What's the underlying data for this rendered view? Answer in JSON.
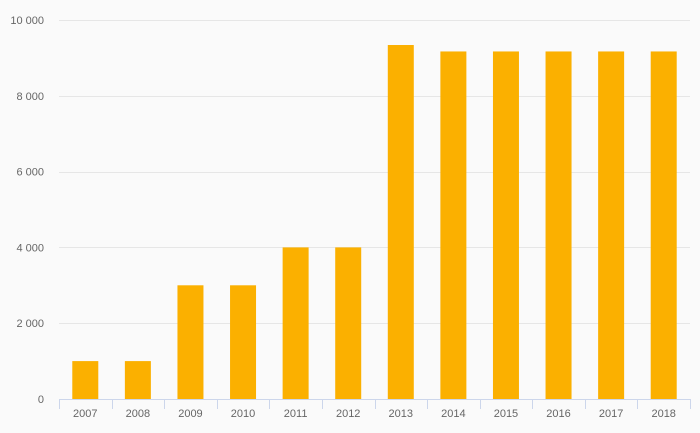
{
  "chart_data": {
    "type": "bar",
    "categories": [
      "2007",
      "2008",
      "2009",
      "2010",
      "2011",
      "2012",
      "2013",
      "2014",
      "2015",
      "2016",
      "2017",
      "2018"
    ],
    "values": [
      1000,
      1000,
      3000,
      3000,
      4000,
      4000,
      9340,
      9170,
      9170,
      9170,
      9170,
      9170
    ],
    "title": "",
    "xlabel": "",
    "ylabel": "",
    "ylim": [
      0,
      10000
    ],
    "yticks": [
      0,
      2000,
      4000,
      6000,
      8000,
      10000
    ],
    "ytick_labels": [
      "0",
      "2 000",
      "4 000",
      "6 000",
      "8 000",
      "10 000"
    ],
    "grid": "horizontal",
    "legend": "none",
    "bar_color": "#FBB000",
    "grid_color": "#E6E6E6",
    "axis_color": "#CCD6EB",
    "label_color": "#666666"
  }
}
